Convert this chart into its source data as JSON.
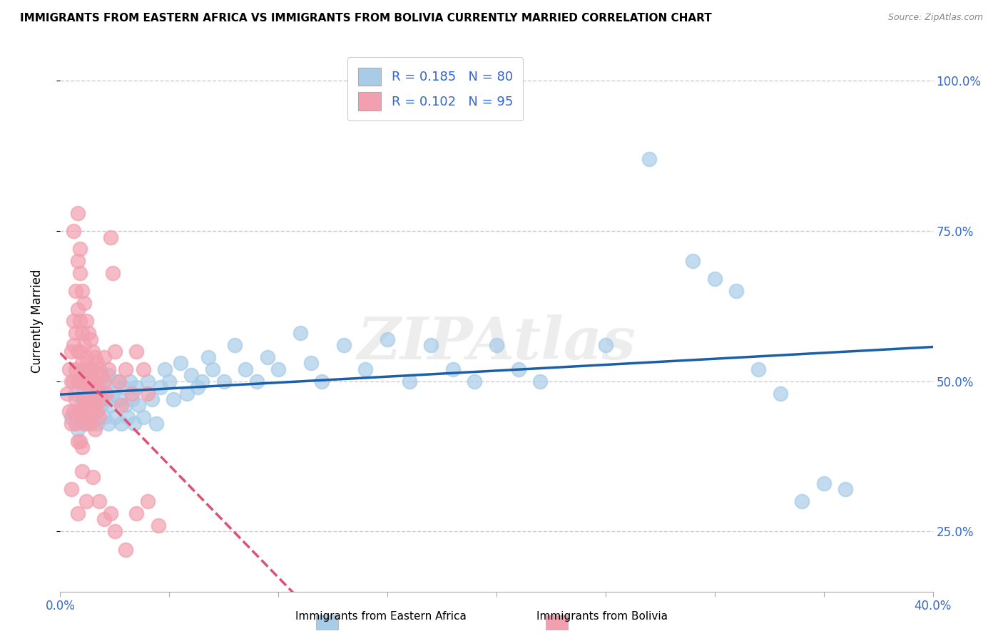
{
  "title": "IMMIGRANTS FROM EASTERN AFRICA VS IMMIGRANTS FROM BOLIVIA CURRENTLY MARRIED CORRELATION CHART",
  "source": "Source: ZipAtlas.com",
  "ylabel": "Currently Married",
  "color_blue": "#a8cce8",
  "color_pink": "#f2a0b0",
  "trendline_blue": "#1a5fa8",
  "trendline_pink": "#e05070",
  "xlim": [
    0.0,
    0.4
  ],
  "ylim": [
    0.15,
    1.05
  ],
  "yticks": [
    0.25,
    0.5,
    0.75,
    1.0
  ],
  "ytick_labels": [
    "25.0%",
    "50.0%",
    "75.0%",
    "100.0%"
  ],
  "xtick_left_label": "0.0%",
  "xtick_right_label": "40.0%",
  "legend_label1": "Immigrants from Eastern Africa",
  "legend_label2": "Immigrants from Bolivia",
  "legend_entry1": "R = 0.185   N = 80",
  "legend_entry2": "R = 0.102   N = 95",
  "watermark": "ZIPAtlas",
  "blue_points": [
    [
      0.005,
      0.44
    ],
    [
      0.007,
      0.48
    ],
    [
      0.008,
      0.42
    ],
    [
      0.009,
      0.5
    ],
    [
      0.01,
      0.47
    ],
    [
      0.01,
      0.52
    ],
    [
      0.011,
      0.45
    ],
    [
      0.012,
      0.43
    ],
    [
      0.013,
      0.5
    ],
    [
      0.013,
      0.46
    ],
    [
      0.014,
      0.48
    ],
    [
      0.015,
      0.44
    ],
    [
      0.015,
      0.52
    ],
    [
      0.016,
      0.47
    ],
    [
      0.017,
      0.43
    ],
    [
      0.018,
      0.49
    ],
    [
      0.019,
      0.46
    ],
    [
      0.02,
      0.44
    ],
    [
      0.02,
      0.5
    ],
    [
      0.021,
      0.47
    ],
    [
      0.022,
      0.43
    ],
    [
      0.022,
      0.51
    ],
    [
      0.023,
      0.46
    ],
    [
      0.024,
      0.48
    ],
    [
      0.025,
      0.44
    ],
    [
      0.026,
      0.5
    ],
    [
      0.027,
      0.47
    ],
    [
      0.028,
      0.43
    ],
    [
      0.029,
      0.49
    ],
    [
      0.03,
      0.46
    ],
    [
      0.031,
      0.44
    ],
    [
      0.032,
      0.5
    ],
    [
      0.033,
      0.47
    ],
    [
      0.034,
      0.43
    ],
    [
      0.035,
      0.49
    ],
    [
      0.036,
      0.46
    ],
    [
      0.038,
      0.44
    ],
    [
      0.04,
      0.5
    ],
    [
      0.042,
      0.47
    ],
    [
      0.044,
      0.43
    ],
    [
      0.046,
      0.49
    ],
    [
      0.048,
      0.52
    ],
    [
      0.05,
      0.5
    ],
    [
      0.052,
      0.47
    ],
    [
      0.055,
      0.53
    ],
    [
      0.058,
      0.48
    ],
    [
      0.06,
      0.51
    ],
    [
      0.063,
      0.49
    ],
    [
      0.065,
      0.5
    ],
    [
      0.068,
      0.54
    ],
    [
      0.07,
      0.52
    ],
    [
      0.075,
      0.5
    ],
    [
      0.08,
      0.56
    ],
    [
      0.085,
      0.52
    ],
    [
      0.09,
      0.5
    ],
    [
      0.095,
      0.54
    ],
    [
      0.1,
      0.52
    ],
    [
      0.11,
      0.58
    ],
    [
      0.115,
      0.53
    ],
    [
      0.12,
      0.5
    ],
    [
      0.13,
      0.56
    ],
    [
      0.14,
      0.52
    ],
    [
      0.15,
      0.57
    ],
    [
      0.16,
      0.5
    ],
    [
      0.17,
      0.56
    ],
    [
      0.18,
      0.52
    ],
    [
      0.19,
      0.5
    ],
    [
      0.2,
      0.56
    ],
    [
      0.21,
      0.52
    ],
    [
      0.22,
      0.5
    ],
    [
      0.25,
      0.56
    ],
    [
      0.27,
      0.87
    ],
    [
      0.29,
      0.7
    ],
    [
      0.3,
      0.67
    ],
    [
      0.31,
      0.65
    ],
    [
      0.32,
      0.52
    ],
    [
      0.33,
      0.48
    ],
    [
      0.34,
      0.3
    ],
    [
      0.35,
      0.33
    ],
    [
      0.36,
      0.32
    ]
  ],
  "pink_points": [
    [
      0.003,
      0.48
    ],
    [
      0.004,
      0.52
    ],
    [
      0.004,
      0.45
    ],
    [
      0.005,
      0.55
    ],
    [
      0.005,
      0.5
    ],
    [
      0.005,
      0.43
    ],
    [
      0.006,
      0.6
    ],
    [
      0.006,
      0.56
    ],
    [
      0.006,
      0.5
    ],
    [
      0.006,
      0.45
    ],
    [
      0.007,
      0.65
    ],
    [
      0.007,
      0.58
    ],
    [
      0.007,
      0.52
    ],
    [
      0.007,
      0.47
    ],
    [
      0.007,
      0.43
    ],
    [
      0.008,
      0.7
    ],
    [
      0.008,
      0.62
    ],
    [
      0.008,
      0.55
    ],
    [
      0.008,
      0.5
    ],
    [
      0.008,
      0.45
    ],
    [
      0.008,
      0.4
    ],
    [
      0.009,
      0.68
    ],
    [
      0.009,
      0.6
    ],
    [
      0.009,
      0.55
    ],
    [
      0.009,
      0.5
    ],
    [
      0.009,
      0.45
    ],
    [
      0.009,
      0.4
    ],
    [
      0.01,
      0.65
    ],
    [
      0.01,
      0.58
    ],
    [
      0.01,
      0.53
    ],
    [
      0.01,
      0.48
    ],
    [
      0.01,
      0.44
    ],
    [
      0.01,
      0.39
    ],
    [
      0.011,
      0.63
    ],
    [
      0.011,
      0.56
    ],
    [
      0.011,
      0.52
    ],
    [
      0.011,
      0.47
    ],
    [
      0.011,
      0.43
    ],
    [
      0.012,
      0.6
    ],
    [
      0.012,
      0.54
    ],
    [
      0.012,
      0.5
    ],
    [
      0.012,
      0.46
    ],
    [
      0.013,
      0.58
    ],
    [
      0.013,
      0.52
    ],
    [
      0.013,
      0.48
    ],
    [
      0.013,
      0.44
    ],
    [
      0.014,
      0.57
    ],
    [
      0.014,
      0.52
    ],
    [
      0.014,
      0.47
    ],
    [
      0.014,
      0.43
    ],
    [
      0.015,
      0.55
    ],
    [
      0.015,
      0.5
    ],
    [
      0.015,
      0.46
    ],
    [
      0.016,
      0.54
    ],
    [
      0.016,
      0.5
    ],
    [
      0.016,
      0.46
    ],
    [
      0.016,
      0.42
    ],
    [
      0.017,
      0.53
    ],
    [
      0.017,
      0.49
    ],
    [
      0.017,
      0.45
    ],
    [
      0.018,
      0.52
    ],
    [
      0.018,
      0.48
    ],
    [
      0.018,
      0.44
    ],
    [
      0.019,
      0.51
    ],
    [
      0.019,
      0.47
    ],
    [
      0.02,
      0.54
    ],
    [
      0.02,
      0.5
    ],
    [
      0.021,
      0.48
    ],
    [
      0.022,
      0.52
    ],
    [
      0.023,
      0.74
    ],
    [
      0.024,
      0.68
    ],
    [
      0.025,
      0.55
    ],
    [
      0.027,
      0.5
    ],
    [
      0.028,
      0.46
    ],
    [
      0.03,
      0.52
    ],
    [
      0.033,
      0.48
    ],
    [
      0.035,
      0.55
    ],
    [
      0.038,
      0.52
    ],
    [
      0.04,
      0.48
    ],
    [
      0.005,
      0.32
    ],
    [
      0.008,
      0.28
    ],
    [
      0.01,
      0.35
    ],
    [
      0.012,
      0.3
    ],
    [
      0.015,
      0.34
    ],
    [
      0.018,
      0.3
    ],
    [
      0.02,
      0.27
    ],
    [
      0.023,
      0.28
    ],
    [
      0.025,
      0.25
    ],
    [
      0.03,
      0.22
    ],
    [
      0.035,
      0.28
    ],
    [
      0.04,
      0.3
    ],
    [
      0.045,
      0.26
    ],
    [
      0.006,
      0.75
    ],
    [
      0.008,
      0.78
    ],
    [
      0.009,
      0.72
    ]
  ]
}
